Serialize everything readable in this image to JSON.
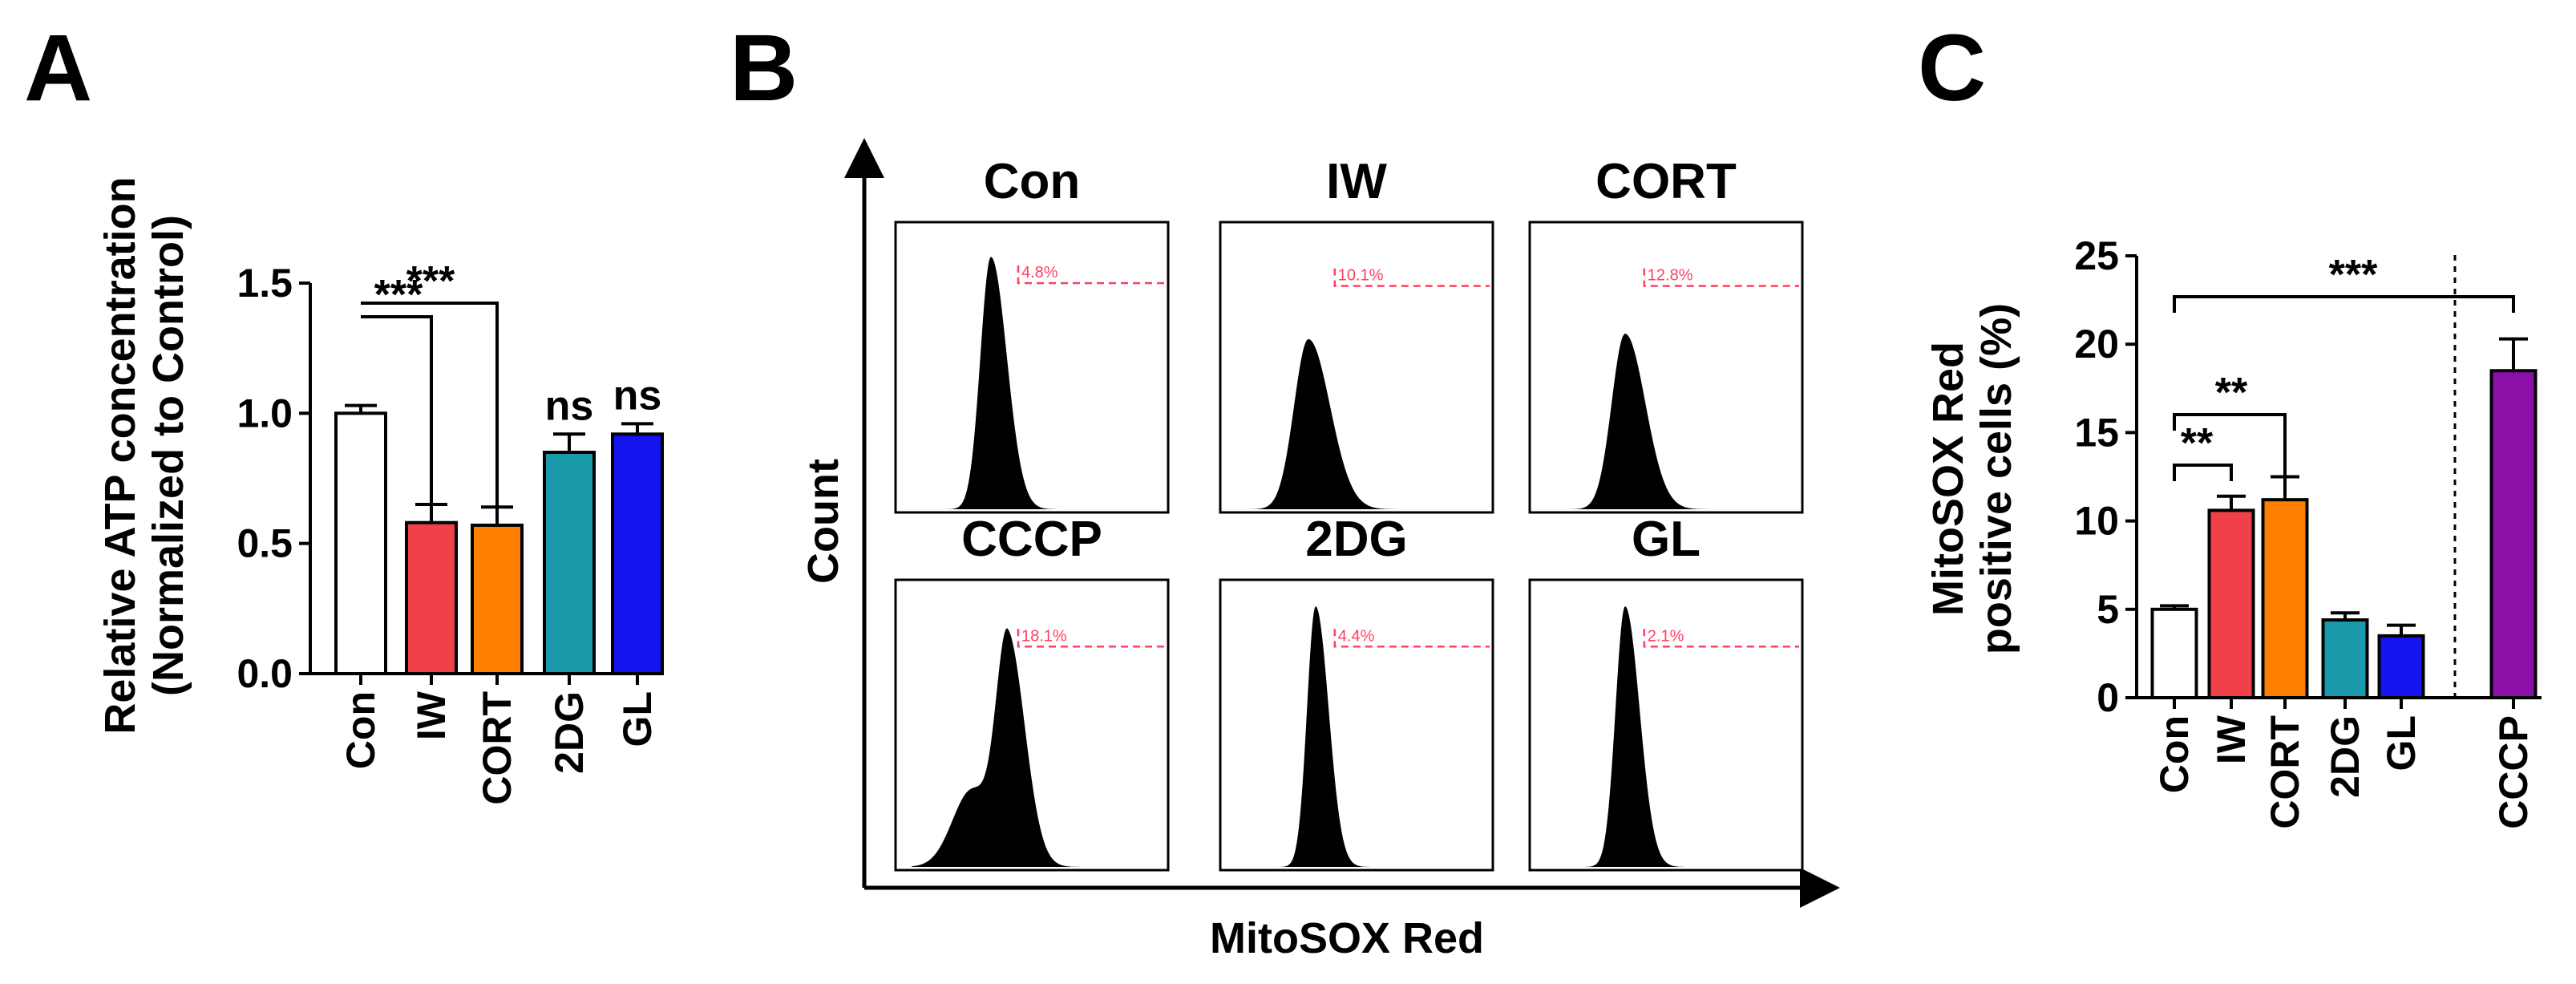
{
  "colors": {
    "Con": "#ffffff",
    "IW": "#f0404a",
    "CORT": "#ff8000",
    "2DG": "#1a9aaa",
    "GL": "#1414f0",
    "CCCP": "#8c10a8",
    "gate": "#ff4060"
  },
  "chart_data": [
    {
      "type": "bar",
      "panel": "A",
      "ylabel": [
        "Relative ATP concentration",
        "(Normalized to Control)"
      ],
      "ylim": [
        0,
        1.5
      ],
      "yticks": [
        "0.0",
        "0.5",
        "1.0",
        "1.5"
      ],
      "categories": [
        "Con",
        "IW",
        "CORT",
        "2DG",
        "GL"
      ],
      "values": [
        1.0,
        0.58,
        0.57,
        0.85,
        0.92
      ],
      "errors": [
        0.03,
        0.07,
        0.07,
        0.07,
        0.04
      ],
      "significance": [
        {
          "from": "Con",
          "to": "IW",
          "label": "***"
        },
        {
          "from": "Con",
          "to": "CORT",
          "label": "***"
        },
        {
          "at": "2DG",
          "label": "ns"
        },
        {
          "at": "GL",
          "label": "ns"
        }
      ]
    },
    {
      "type": "histogram",
      "panel": "B",
      "xlabel": "MitoSOX Red",
      "ylabel": "Count",
      "plots": [
        {
          "title": "Con",
          "gate_label": "4.8%"
        },
        {
          "title": "IW",
          "gate_label": "10.1%"
        },
        {
          "title": "CORT",
          "gate_label": "12.8%"
        },
        {
          "title": "CCCP",
          "gate_label": "18.1%"
        },
        {
          "title": "2DG",
          "gate_label": "4.4%"
        },
        {
          "title": "GL",
          "gate_label": "2.1%"
        }
      ]
    },
    {
      "type": "bar",
      "panel": "C",
      "ylabel": [
        "MitoSOX Red",
        "positive cells (%)"
      ],
      "ylim": [
        0,
        25
      ],
      "yticks": [
        "0",
        "5",
        "10",
        "15",
        "20",
        "25"
      ],
      "categories": [
        "Con",
        "IW",
        "CORT",
        "2DG",
        "GL",
        "CCCP"
      ],
      "values": [
        5.0,
        10.6,
        11.2,
        4.4,
        3.5,
        18.5
      ],
      "errors": [
        0.2,
        0.8,
        1.3,
        0.4,
        0.6,
        1.8
      ],
      "significance": [
        {
          "from": "Con",
          "to": "IW",
          "label": "**"
        },
        {
          "from": "Con",
          "to": "CORT",
          "label": "**"
        },
        {
          "from": "Con",
          "to": "CCCP",
          "label": "***"
        }
      ]
    }
  ]
}
